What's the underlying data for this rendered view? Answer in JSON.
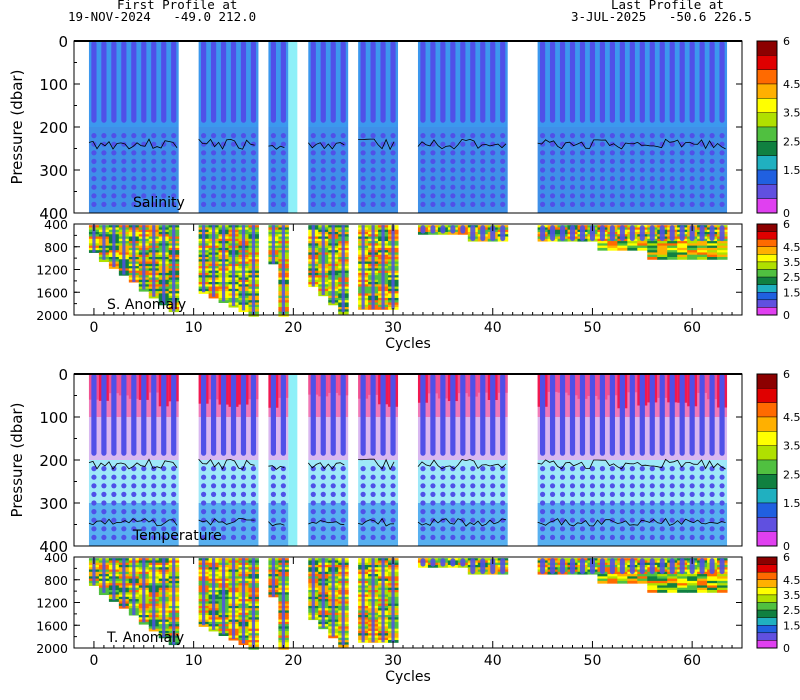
{
  "header": {
    "first_label": "First Profile at",
    "first_value": "19-NOV-2024   -49.0 212.0",
    "last_label": "Last Profile at",
    "last_value": "3-JUL-2025   -50.6 226.5"
  },
  "colorbar": {
    "tick_labels": [
      "6",
      "4.5",
      "3.5",
      "2.5",
      "1.5",
      "0"
    ],
    "colors": [
      "#8c0000",
      "#e00000",
      "#ff6a00",
      "#ffb000",
      "#ffff00",
      "#b0e000",
      "#50c040",
      "#108040",
      "#20b0c0",
      "#2060e0",
      "#6050e0",
      "#e040f0"
    ]
  },
  "chart_data": [
    {
      "type": "heatmap",
      "panel": "upper",
      "ylabel": "Pressure (dbar)",
      "label": "Salinity",
      "y_ticks": [
        "0",
        "100",
        "200",
        "300",
        "400"
      ],
      "ylim": [
        400,
        0
      ],
      "xlim": [
        -2,
        65
      ],
      "cycle_groups": [
        [
          0,
          8
        ],
        [
          11,
          16
        ],
        [
          18,
          19
        ],
        [
          22,
          25
        ],
        [
          27,
          30
        ],
        [
          33,
          41
        ],
        [
          45,
          63
        ]
      ],
      "missing_cycles": [
        9,
        10,
        17,
        20,
        21,
        26,
        31,
        32,
        42,
        43,
        44
      ],
      "contours": [
        "3.5"
      ]
    },
    {
      "type": "heatmap",
      "panel": "lower",
      "label": "S. Anomaly",
      "y_ticks": [
        "400",
        "800",
        "1200",
        "1600",
        "2000"
      ],
      "ylim": [
        2000,
        400
      ],
      "x_ticks": [
        "0",
        "10",
        "20",
        "30",
        "40",
        "50",
        "60"
      ],
      "xlabel": "Cycles"
    },
    {
      "type": "heatmap",
      "panel": "upper",
      "ylabel": "Pressure (dbar)",
      "label": "Temperature",
      "y_ticks": [
        "0",
        "100",
        "200",
        "300",
        "400"
      ],
      "ylim": [
        400,
        0
      ],
      "xlim": [
        -2,
        65
      ],
      "contours": [
        "0.0",
        "0.2",
        "0.5"
      ]
    },
    {
      "type": "heatmap",
      "panel": "lower",
      "label": "T. Anomaly",
      "y_ticks": [
        "400",
        "800",
        "1200",
        "1600",
        "2000"
      ],
      "ylim": [
        2000,
        400
      ],
      "x_ticks": [
        "0",
        "10",
        "20",
        "30",
        "40",
        "50",
        "60"
      ],
      "xlabel": "Cycles"
    }
  ]
}
